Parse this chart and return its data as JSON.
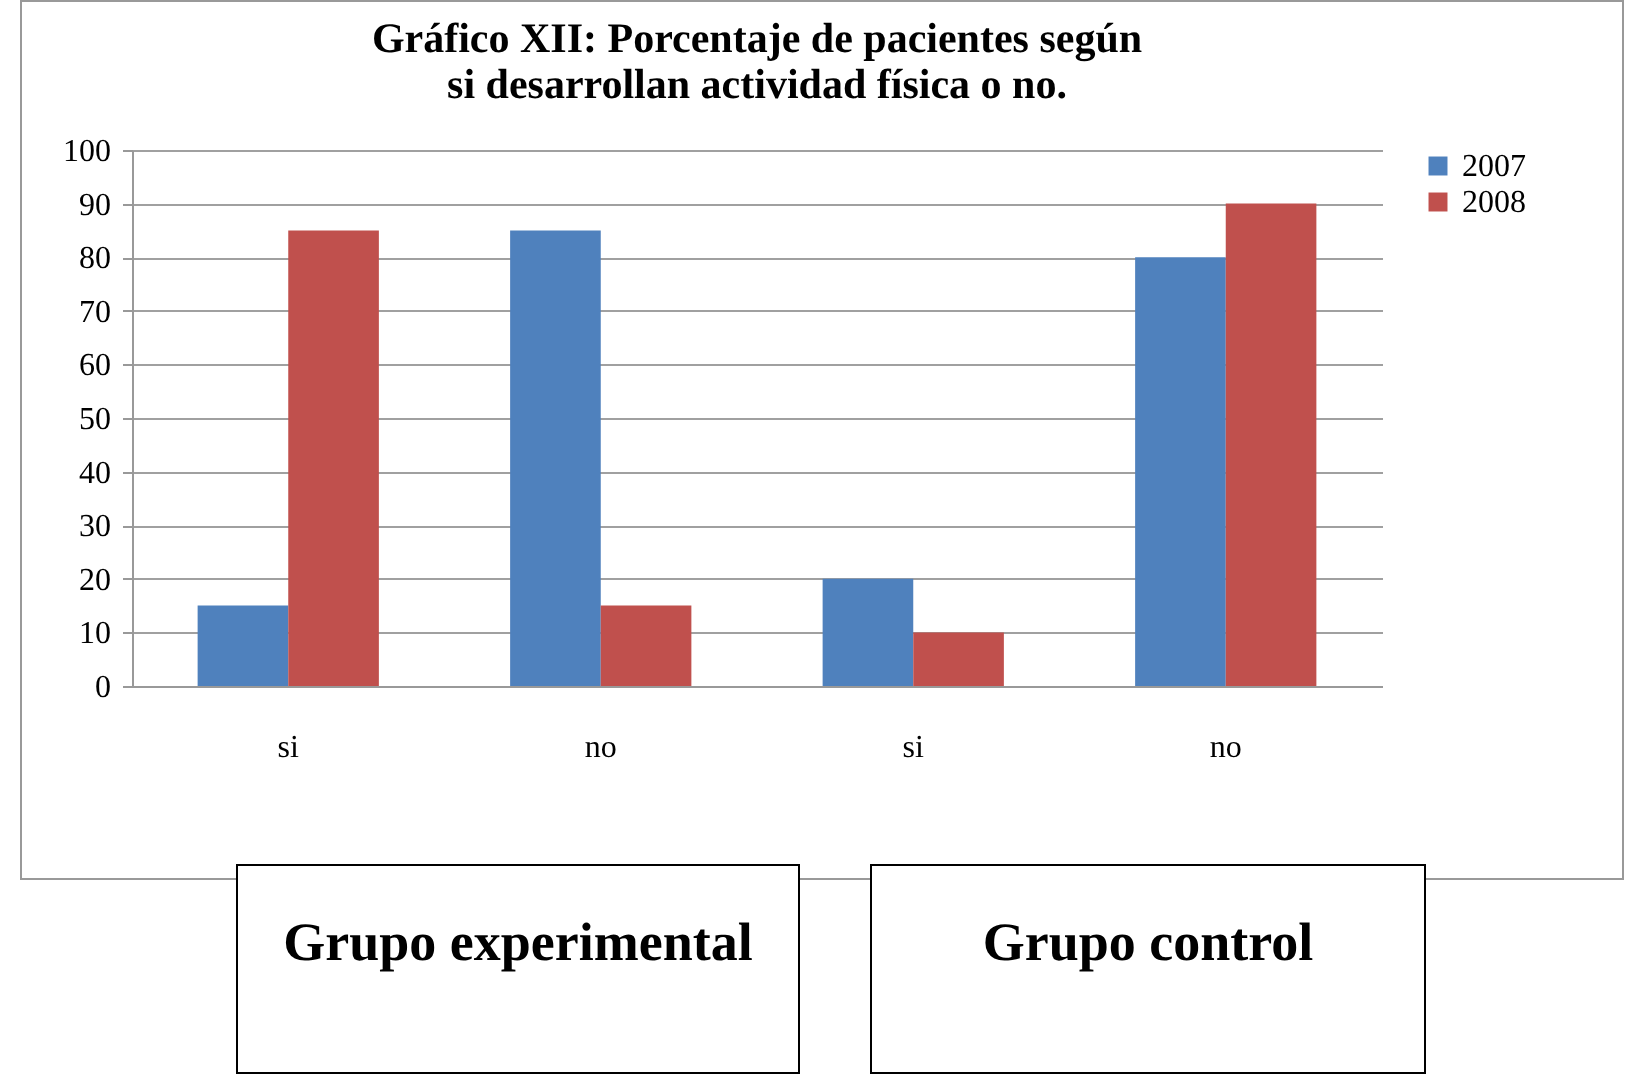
{
  "chart_data": {
    "type": "bar",
    "title": "Gráfico XII: Porcentaje de pacientes según si desarrollan actividad física o no.",
    "categories": [
      "si",
      "no",
      "si",
      "no"
    ],
    "series": [
      {
        "name": "2007",
        "color": "#4f81bd",
        "values": [
          15,
          85,
          20,
          80
        ]
      },
      {
        "name": "2008",
        "color": "#c0504d",
        "values": [
          85,
          15,
          10,
          90
        ]
      }
    ],
    "ylim": [
      0,
      100
    ],
    "yticks": [
      0,
      10,
      20,
      30,
      40,
      50,
      60,
      70,
      80,
      90,
      100
    ],
    "grid": "y",
    "legend": "right",
    "annotations": [
      "Grupo experimental",
      "Grupo control"
    ]
  }
}
